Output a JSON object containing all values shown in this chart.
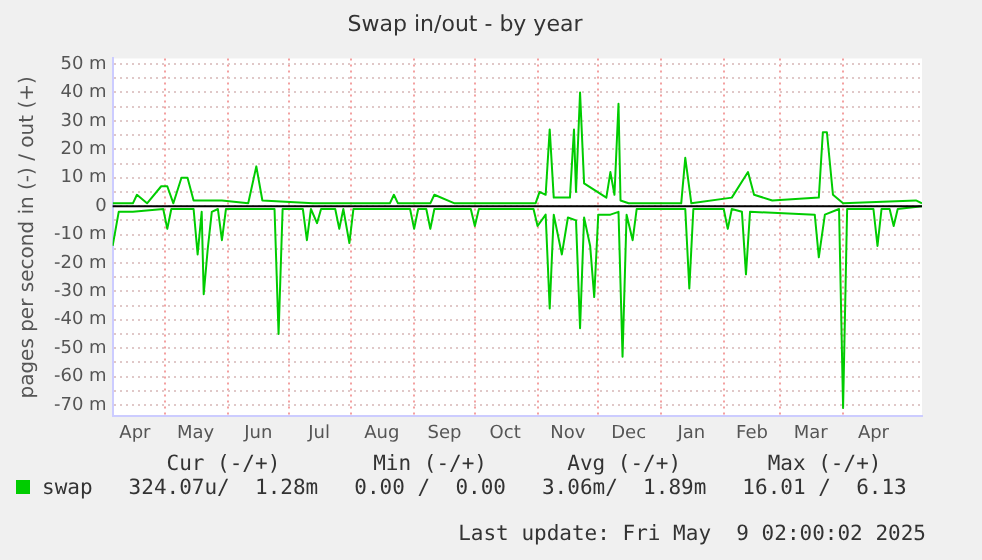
{
  "chart_data": {
    "type": "line",
    "title": "Swap in/out - by year",
    "ylabel": "pages per second in (-) / out (+)",
    "xlim": [
      "2024-04-05",
      "2025-05-10"
    ],
    "xticks": [
      {
        "value": "2024-04-16",
        "label": "Apr"
      },
      {
        "value": "2024-05-01",
        "label": null
      },
      {
        "value": "2024-05-16",
        "label": "May"
      },
      {
        "value": "2024-06-01",
        "label": null
      },
      {
        "value": "2024-06-16",
        "label": "Jun"
      },
      {
        "value": "2024-07-01",
        "label": null
      },
      {
        "value": "2024-07-16",
        "label": "Jul"
      },
      {
        "value": "2024-08-01",
        "label": null
      },
      {
        "value": "2024-08-16",
        "label": "Aug"
      },
      {
        "value": "2024-09-01",
        "label": null
      },
      {
        "value": "2024-09-16",
        "label": "Sep"
      },
      {
        "value": "2024-10-01",
        "label": null
      },
      {
        "value": "2024-10-16",
        "label": "Oct"
      },
      {
        "value": "2024-11-01",
        "label": null
      },
      {
        "value": "2024-11-16",
        "label": "Nov"
      },
      {
        "value": "2024-12-01",
        "label": null
      },
      {
        "value": "2024-12-16",
        "label": "Dec"
      },
      {
        "value": "2025-01-01",
        "label": null
      },
      {
        "value": "2025-01-16",
        "label": "Jan"
      },
      {
        "value": "2025-02-01",
        "label": null
      },
      {
        "value": "2025-02-15",
        "label": "Feb"
      },
      {
        "value": "2025-03-01",
        "label": null
      },
      {
        "value": "2025-03-16",
        "label": "Mar"
      },
      {
        "value": "2025-04-01",
        "label": null
      },
      {
        "value": "2025-04-16",
        "label": "Apr"
      }
    ],
    "ylim": [
      -74,
      52
    ],
    "yticks": [
      {
        "value": -70,
        "label": "-70 m"
      },
      {
        "value": -65,
        "label": null
      },
      {
        "value": -60,
        "label": "-60 m"
      },
      {
        "value": -55,
        "label": null
      },
      {
        "value": -50,
        "label": "-50 m"
      },
      {
        "value": -45,
        "label": null
      },
      {
        "value": -40,
        "label": "-40 m"
      },
      {
        "value": -35,
        "label": null
      },
      {
        "value": -30,
        "label": "-30 m"
      },
      {
        "value": -25,
        "label": null
      },
      {
        "value": -20,
        "label": "-20 m"
      },
      {
        "value": -15,
        "label": null
      },
      {
        "value": -10,
        "label": "-10 m"
      },
      {
        "value": -5,
        "label": null
      },
      {
        "value": 0,
        "label": "0"
      },
      {
        "value": 5,
        "label": null
      },
      {
        "value": 10,
        "label": "10 m"
      },
      {
        "value": 15,
        "label": null
      },
      {
        "value": 20,
        "label": "20 m"
      },
      {
        "value": 25,
        "label": null
      },
      {
        "value": 30,
        "label": "30 m"
      },
      {
        "value": 35,
        "label": null
      },
      {
        "value": 40,
        "label": "40 m"
      },
      {
        "value": 45,
        "label": null
      },
      {
        "value": 50,
        "label": "50 m"
      }
    ],
    "grid": true,
    "legend": "bottom",
    "marker": "none",
    "line_style": "solid",
    "ref_lines": [
      {
        "axis": "y",
        "value": 0,
        "color": "#000000"
      }
    ],
    "series": [
      {
        "name": "swap",
        "color": "#00cc00",
        "x": [
          "2024-04-05",
          "2024-04-08",
          "2024-04-15",
          "2024-04-30",
          "2024-05-02",
          "2024-05-04",
          "2024-05-15",
          "2024-05-17",
          "2024-05-19",
          "2024-05-20",
          "2024-05-22",
          "2024-05-24",
          "2024-05-27",
          "2024-05-29",
          "2024-05-31",
          "2024-06-24",
          "2024-06-26",
          "2024-06-28",
          "2024-07-08",
          "2024-07-10",
          "2024-07-12",
          "2024-07-15",
          "2024-07-17",
          "2024-07-24",
          "2024-07-26",
          "2024-07-28",
          "2024-07-31",
          "2024-08-02",
          "2024-08-30",
          "2024-09-01",
          "2024-09-03",
          "2024-09-07",
          "2024-09-09",
          "2024-09-11",
          "2024-09-29",
          "2024-10-01",
          "2024-10-03",
          "2024-10-30",
          "2024-11-01",
          "2024-11-05",
          "2024-11-07",
          "2024-11-09",
          "2024-11-13",
          "2024-11-16",
          "2024-11-20",
          "2024-11-22",
          "2024-11-24",
          "2024-11-27",
          "2024-11-29",
          "2024-12-01",
          "2024-12-07",
          "2024-12-11",
          "2024-12-13",
          "2024-12-15",
          "2024-12-18",
          "2024-12-20",
          "2025-01-13",
          "2025-01-15",
          "2025-01-17",
          "2025-02-01",
          "2025-02-03",
          "2025-02-05",
          "2025-02-10",
          "2025-02-12",
          "2025-02-14",
          "2025-03-18",
          "2025-03-20",
          "2025-03-23",
          "2025-03-30",
          "2025-04-01",
          "2025-04-03",
          "2025-04-16",
          "2025-04-18",
          "2025-04-20",
          "2025-04-24",
          "2025-04-26",
          "2025-04-28",
          "2025-05-10"
        ],
        "values": [
          -14,
          -2,
          -2,
          -1,
          -8,
          -1,
          -1,
          -17,
          -2,
          -31,
          -15,
          -2,
          -1,
          -12,
          -1,
          -1,
          -45,
          -1,
          -1,
          -12,
          -1,
          -6,
          -1,
          -1,
          -8,
          -1,
          -13,
          -1,
          -1,
          -8,
          -1,
          -1,
          -8,
          -1,
          -1,
          -7,
          -1,
          -1,
          -7,
          -3,
          -36,
          -3,
          -17,
          -4,
          -5,
          -43,
          -4,
          -14,
          -32,
          -3,
          -3,
          -2,
          -53,
          -3,
          -12,
          -1,
          -1,
          -29,
          -1,
          -1,
          -8,
          -1,
          -2,
          -24,
          -2,
          -3,
          -18,
          -3,
          -1,
          -71,
          -1,
          -1,
          -14,
          -1,
          -1,
          -7,
          -1,
          0
        ]
      },
      {
        "color": "#00cc00",
        "x": [
          "2024-04-05",
          "2024-04-15",
          "2024-04-17",
          "2024-04-22",
          "2024-04-29",
          "2024-05-02",
          "2024-05-05",
          "2024-05-09",
          "2024-05-12",
          "2024-05-15",
          "2024-05-29",
          "2024-06-11",
          "2024-06-15",
          "2024-06-18",
          "2024-07-13",
          "2024-08-20",
          "2024-08-22",
          "2024-08-24",
          "2024-09-09",
          "2024-09-11",
          "2024-09-21",
          "2024-10-31",
          "2024-11-02",
          "2024-11-05",
          "2024-11-07",
          "2024-11-09",
          "2024-11-17",
          "2024-11-19",
          "2024-11-20",
          "2024-11-22",
          "2024-11-24",
          "2024-12-05",
          "2024-12-07",
          "2024-12-09",
          "2024-12-11",
          "2024-12-12",
          "2024-12-16",
          "2025-01-11",
          "2025-01-13",
          "2025-01-16",
          "2025-02-05",
          "2025-02-13",
          "2025-02-16",
          "2025-02-25",
          "2025-03-20",
          "2025-03-22",
          "2025-03-24",
          "2025-03-27",
          "2025-04-01",
          "2025-05-07",
          "2025-05-10"
        ],
        "values": [
          1,
          1,
          4,
          1,
          7,
          7,
          1,
          10,
          10,
          2,
          2,
          1,
          14,
          2,
          1,
          1,
          4,
          1,
          1,
          4,
          1,
          1,
          5,
          4,
          27,
          3,
          3,
          27,
          5,
          40,
          8,
          3,
          12,
          4,
          36,
          2,
          1,
          1,
          17,
          1,
          3,
          12,
          4,
          2,
          3,
          26,
          26,
          4,
          1,
          2,
          1
        ]
      }
    ],
    "annotations": [
      "Cur (-/+)",
      "Min (-/+)",
      "Avg (-/+)",
      "Max (-/+)",
      "324.07u/  1.28m",
      "0.00 /  0.00",
      "3.06m/  1.89m",
      "16.01 /  6.13",
      "Last update: Fri May  9 02:00:02 2025"
    ]
  }
}
